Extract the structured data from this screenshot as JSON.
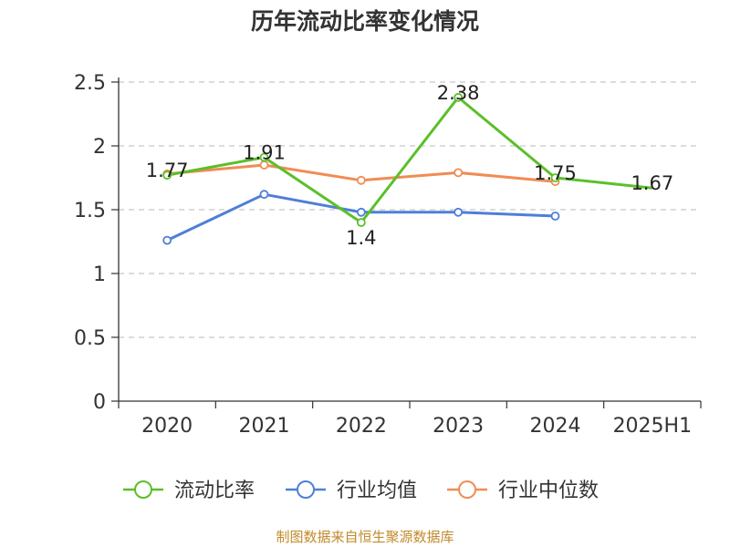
{
  "chart_data": {
    "type": "line",
    "title": "历年流动比率变化情况",
    "categories": [
      "2020",
      "2021",
      "2022",
      "2023",
      "2024",
      "2025H1"
    ],
    "ylim": [
      0,
      2.5
    ],
    "yticks": [
      "0",
      "0.5",
      "1",
      "1.5",
      "2",
      "2.5"
    ],
    "grid": true,
    "legend_position": "bottom",
    "series": [
      {
        "name": "流动比率",
        "color": "#5bbf2a",
        "values": [
          1.77,
          1.91,
          1.4,
          2.38,
          1.75,
          1.67
        ],
        "labels": [
          "1.77",
          "1.91",
          "1.4",
          "2.38",
          "1.75",
          "1.67"
        ]
      },
      {
        "name": "行业均值",
        "color": "#4e7fd8",
        "values": [
          1.26,
          1.62,
          1.48,
          1.48,
          1.45,
          null
        ]
      },
      {
        "name": "行业中位数",
        "color": "#f08c55",
        "values": [
          1.78,
          1.85,
          1.73,
          1.79,
          1.72,
          null
        ]
      }
    ]
  },
  "source_note": "制图数据来自恒生聚源数据库"
}
